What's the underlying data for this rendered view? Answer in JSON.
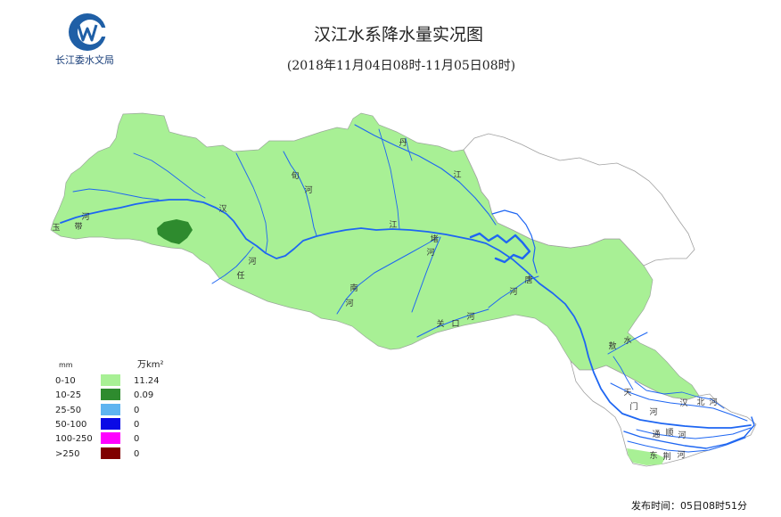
{
  "header": {
    "org_name": "长江委水文局",
    "title": "汉江水系降水量实况图",
    "subtitle": "(2018年11月04日08时-11月05日08时)"
  },
  "logo": {
    "icon": "cjw-hydrology-logo-icon",
    "color": "#1f5fa6"
  },
  "map": {
    "river_labels": [
      "丹",
      "江",
      "旬",
      "河",
      "汉",
      "江",
      "河",
      "玉",
      "带",
      "河",
      "任",
      "堵",
      "河",
      "南",
      "河",
      "唐",
      "河",
      "关",
      "口",
      "河",
      "敖",
      "水",
      "天",
      "门",
      "河",
      "汉",
      "北",
      "河",
      "通",
      "顺",
      "河",
      "东",
      "荆",
      "河"
    ],
    "colors": {
      "river": "#1e66f2",
      "outline": "#a0a0a0",
      "no_data": "#ffffff"
    }
  },
  "legend": {
    "unit_left": "mm",
    "unit_right": "万km²",
    "rows": [
      {
        "range": "0-10",
        "color": "#a8f095",
        "area": "11.24"
      },
      {
        "range": "10-25",
        "color": "#2e8b2e",
        "area": "0.09"
      },
      {
        "range": "25-50",
        "color": "#5eb4f0",
        "area": "0"
      },
      {
        "range": "50-100",
        "color": "#0a0ae6",
        "area": "0"
      },
      {
        "range": "100-250",
        "color": "#ff00ff",
        "area": "0"
      },
      {
        "range": ">250",
        "color": "#800000",
        "area": "0"
      }
    ]
  },
  "footer": {
    "publish_time": "发布时间：05日08时51分"
  }
}
